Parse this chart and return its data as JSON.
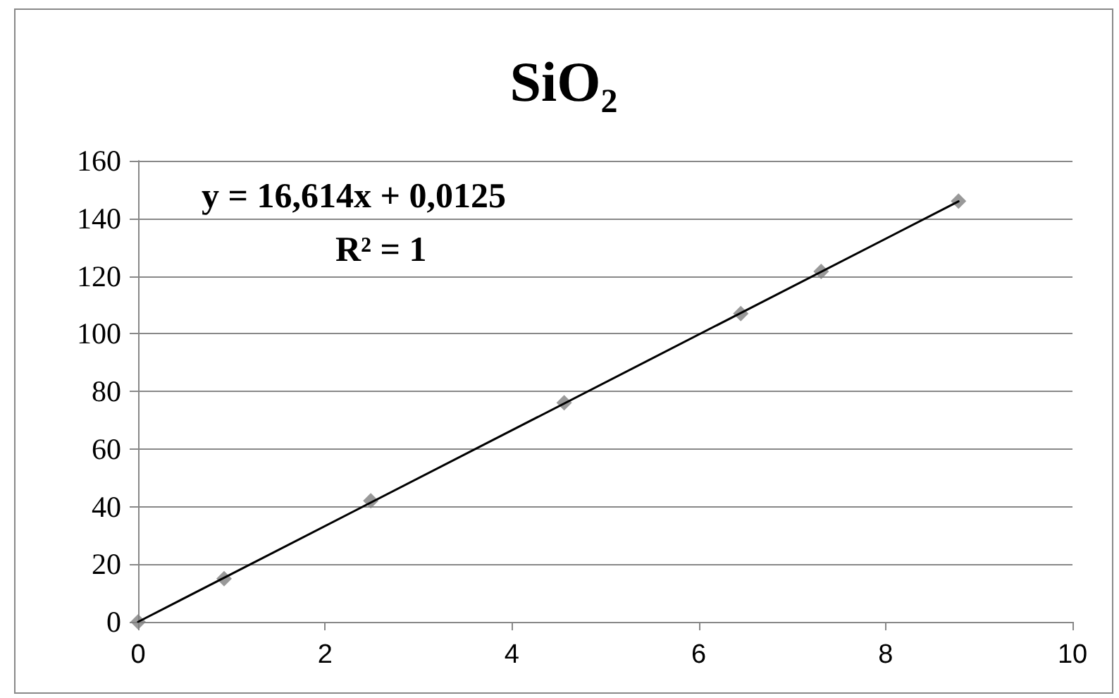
{
  "chart_data": {
    "type": "scatter",
    "title": "SiO₂",
    "series": [
      {
        "color": "#7f7f7f",
        "marker": "diamond",
        "x": [
          0,
          0.92,
          2.49,
          4.56,
          6.45,
          7.31,
          8.78
        ],
        "values": [
          0,
          15,
          42,
          76,
          107,
          121.6,
          146
        ]
      },
      {
        "type": "line",
        "color": "#000000",
        "marker": "none",
        "line_style": "solid",
        "x": [
          0,
          8.78
        ],
        "values": [
          0,
          145.9
        ]
      }
    ],
    "annotations": [
      "y = 16,614x + 0,0125",
      "R² = 1"
    ],
    "xlim": [
      0,
      10
    ],
    "xticks": [
      0,
      2,
      4,
      6,
      8,
      10
    ],
    "ylim": [
      0,
      160
    ],
    "yticks": [
      0,
      20,
      40,
      60,
      80,
      100,
      120,
      140,
      160
    ],
    "grid": "y"
  }
}
